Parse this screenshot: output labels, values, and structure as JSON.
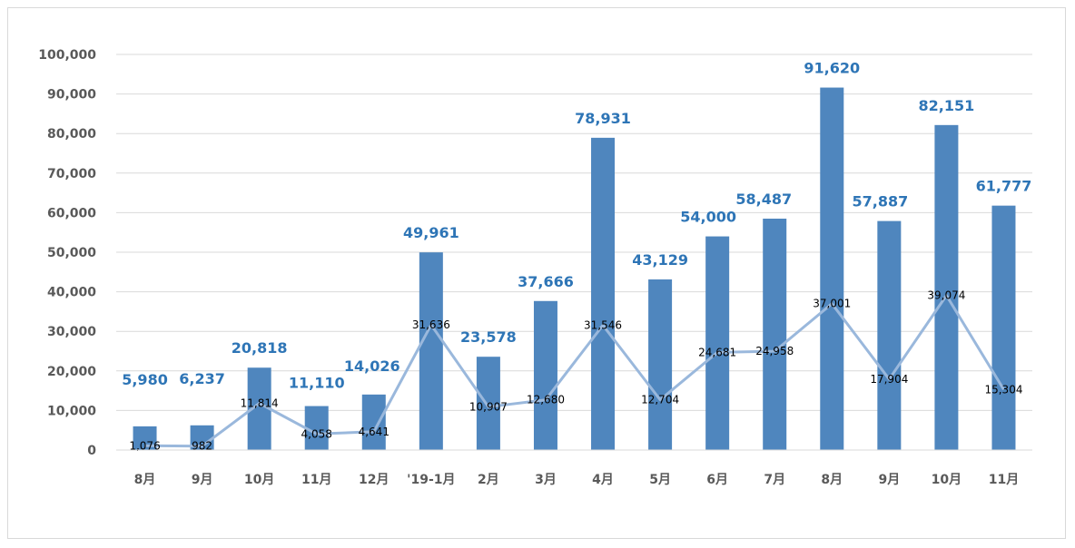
{
  "chart_data": {
    "type": "bar",
    "categories": [
      "8月",
      "9月",
      "10月",
      "11月",
      "12月",
      "'19-1月",
      "2月",
      "3月",
      "4月",
      "5月",
      "6月",
      "7月",
      "8月",
      "9月",
      "10月",
      "11月"
    ],
    "series": [
      {
        "type": "bar",
        "values": [
          5980,
          6237,
          20818,
          11110,
          14026,
          49961,
          23578,
          37666,
          78931,
          43129,
          54000,
          58487,
          91620,
          57887,
          82151,
          61777
        ],
        "labels": [
          "5,980",
          "6,237",
          "20,818",
          "11,110",
          "14,026",
          "49,961",
          "23,578",
          "37,666",
          "78,931",
          "43,129",
          "54,000",
          "58,487",
          "91,620",
          "57,887",
          "82,151",
          "61,777"
        ],
        "color": "#4f86be"
      },
      {
        "type": "line",
        "values": [
          1076,
          982,
          11814,
          4058,
          4641,
          31636,
          10907,
          12680,
          31546,
          12704,
          24681,
          24958,
          37001,
          17904,
          39074,
          15304
        ],
        "labels": [
          "1,076",
          "982",
          "11,814",
          "4,058",
          "4,641",
          "31,636",
          "10,907",
          "12,680",
          "31,546",
          "12,704",
          "24,681",
          "24,958",
          "37,001",
          "17,904",
          "39,074",
          "15,304"
        ],
        "color": "#9ab8dc"
      }
    ],
    "ylim": [
      0,
      100000
    ],
    "yticks": [
      0,
      10000,
      20000,
      30000,
      40000,
      50000,
      60000,
      70000,
      80000,
      90000,
      100000
    ],
    "ytick_labels": [
      "0",
      "10,000",
      "20,000",
      "30,000",
      "40,000",
      "50,000",
      "60,000",
      "70,000",
      "80,000",
      "90,000",
      "100,000"
    ],
    "grid": true,
    "legend": "none",
    "title": "",
    "xlabel": "",
    "ylabel": "",
    "colors": {
      "bar": "#4f86be",
      "line": "#9ab8dc",
      "bar_label": "#2e75b6",
      "grid": "#d9d9d9",
      "tick": "#595959"
    }
  }
}
